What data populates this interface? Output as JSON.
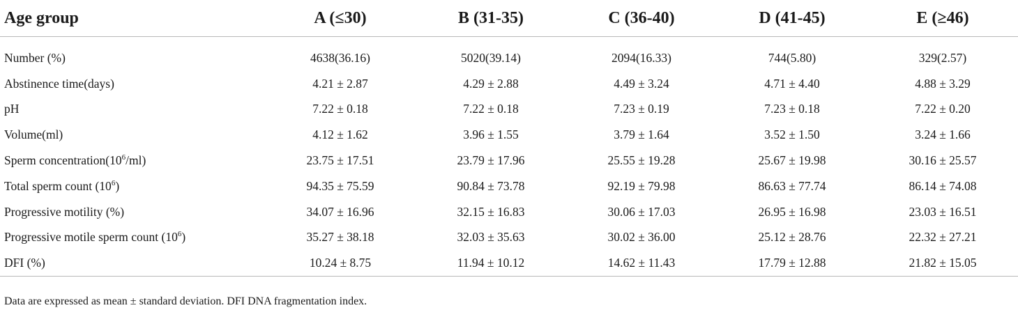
{
  "table": {
    "headers": [
      "Age group",
      "A (≤30)",
      "B (31-35)",
      "C (36-40)",
      "D (41-45)",
      "E (≥46)"
    ],
    "rows": [
      {
        "label": "Number (%)",
        "sup": "",
        "suffix": "",
        "values": [
          "4638(36.16)",
          "5020(39.14)",
          "2094(16.33)",
          "744(5.80)",
          "329(2.57)"
        ]
      },
      {
        "label": "Abstinence time(days)",
        "sup": "",
        "suffix": "",
        "values": [
          "4.21 ± 2.87",
          "4.29 ± 2.88",
          "4.49 ± 3.24",
          "4.71 ± 4.40",
          "4.88 ± 3.29"
        ]
      },
      {
        "label": "pH",
        "sup": "",
        "suffix": "",
        "values": [
          "7.22 ± 0.18",
          "7.22 ± 0.18",
          "7.23 ± 0.19",
          "7.23 ± 0.18",
          "7.22 ± 0.20"
        ]
      },
      {
        "label": "Volume(ml)",
        "sup": "",
        "suffix": "",
        "values": [
          "4.12 ± 1.62",
          "3.96 ± 1.55",
          "3.79 ± 1.64",
          "3.52 ± 1.50",
          "3.24 ± 1.66"
        ]
      },
      {
        "label": "Sperm concentration(10",
        "sup": "6",
        "suffix": "/ml)",
        "values": [
          "23.75 ± 17.51",
          "23.79 ± 17.96",
          "25.55 ± 19.28",
          "25.67 ± 19.98",
          "30.16 ± 25.57"
        ]
      },
      {
        "label": "Total sperm count (10",
        "sup": "6",
        "suffix": ")",
        "values": [
          "94.35 ± 75.59",
          "90.84 ± 73.78",
          "92.19 ± 79.98",
          "86.63 ± 77.74",
          "86.14 ± 74.08"
        ]
      },
      {
        "label": "Progressive motility (%)",
        "sup": "",
        "suffix": "",
        "values": [
          "34.07 ± 16.96",
          "32.15 ± 16.83",
          "30.06 ± 17.03",
          "26.95 ± 16.98",
          "23.03 ± 16.51"
        ]
      },
      {
        "label": "Progressive motile sperm count (10",
        "sup": "6",
        "suffix": ")",
        "values": [
          "35.27 ± 38.18",
          "32.03 ± 35.63",
          "30.02 ± 36.00",
          "25.12 ± 28.76",
          "22.32 ± 27.21"
        ]
      },
      {
        "label": "DFI (%)",
        "sup": "",
        "suffix": "",
        "values": [
          "10.24 ± 8.75",
          "11.94 ± 10.12",
          "14.62 ± 11.43",
          "17.79 ± 12.88",
          "21.82 ± 15.05"
        ]
      }
    ]
  },
  "footnote": "Data are expressed as mean ± standard deviation. DFI DNA fragmentation index."
}
